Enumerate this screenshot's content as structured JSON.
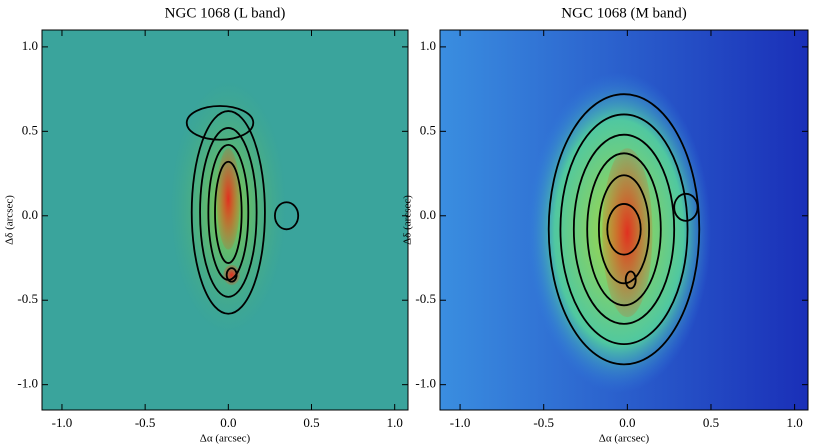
{
  "chart_data": [
    {
      "type": "image",
      "title": "NGC 1068 (L band)",
      "x_label": "Δα (arcsec)",
      "y_label": "Δδ (arcsec)",
      "xlim": [
        -1.12,
        1.08
      ],
      "ylim": [
        -1.15,
        1.1
      ],
      "xticks": [
        {
          "value": -1,
          "label": "-1.0"
        },
        {
          "value": -0.5,
          "label": "-0.5"
        },
        {
          "value": 0,
          "label": "0.0"
        },
        {
          "value": 0.5,
          "label": "0.5"
        },
        {
          "value": 1,
          "label": "1.0"
        }
      ],
      "yticks": [
        {
          "value": -1,
          "label": "-1.0"
        },
        {
          "value": -0.5,
          "label": "-0.5"
        },
        {
          "value": 0,
          "label": "0.0"
        },
        {
          "value": 0.5,
          "label": "0.5"
        },
        {
          "value": 1,
          "label": "1.0"
        }
      ]
    },
    {
      "type": "image",
      "title": "NGC 1068 (M band)",
      "x_label": "Δα (arcsec)",
      "y_label": "Δδ (arcsec)",
      "xlim": [
        -1.12,
        1.08
      ],
      "ylim": [
        -1.15,
        1.1
      ],
      "xticks": [
        {
          "value": -1,
          "label": "-1.0"
        },
        {
          "value": -0.5,
          "label": "-0.5"
        },
        {
          "value": 0,
          "label": "0.0"
        },
        {
          "value": 0.5,
          "label": "0.5"
        },
        {
          "value": 1,
          "label": "1.0"
        }
      ],
      "yticks": [
        {
          "value": -1,
          "label": "-1.0"
        },
        {
          "value": -0.5,
          "label": "-0.5"
        },
        {
          "value": 0,
          "label": "0.0"
        },
        {
          "value": 0.5,
          "label": "0.5"
        },
        {
          "value": 1,
          "label": "1.0"
        }
      ]
    }
  ]
}
